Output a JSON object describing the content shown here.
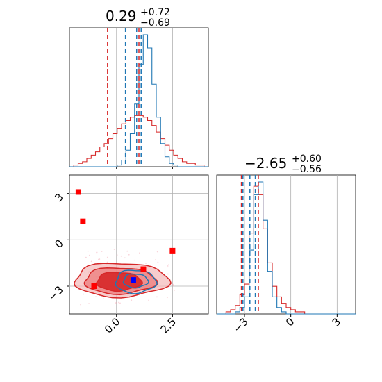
{
  "chart_data": {
    "type": "corner",
    "colors": {
      "series_a": "#d62728",
      "series_b": "#1f77b4",
      "marker_red": "#ff0000",
      "marker_blue": "#0000ff"
    },
    "grid": true,
    "titles": {
      "param1": {
        "median": "0.29",
        "plus": "+0.72",
        "minus": "−0.69"
      },
      "param2": {
        "median": "−2.65",
        "plus": "+0.60",
        "minus": "−0.56"
      }
    },
    "param1_axis": {
      "range": [
        -2.1,
        4.1
      ],
      "ticks": [
        0.0,
        2.5
      ],
      "tick_labels": [
        "0.0",
        "2.5"
      ]
    },
    "param2_axis": {
      "range": [
        -4.8,
        4.2
      ],
      "ticks": [
        -3,
        0,
        3
      ],
      "tick_labels": [
        "−3",
        "0",
        "3"
      ]
    },
    "param1_hist": {
      "series_a_quantiles": [
        -0.4,
        1.0
      ],
      "series_b_quantiles": [
        0.4,
        0.9,
        1.1
      ],
      "series_a_counts": [
        0,
        1,
        2,
        3,
        5,
        7,
        9,
        12,
        14,
        17,
        20,
        23,
        26,
        28,
        30,
        31,
        31,
        30,
        28,
        25,
        21,
        17,
        13,
        10,
        7,
        5,
        3,
        2,
        2,
        1,
        1,
        0
      ],
      "series_b_counts": [
        0,
        0,
        0,
        0,
        0,
        0,
        0,
        0,
        0,
        0,
        0,
        1,
        4,
        10,
        20,
        38,
        62,
        80,
        72,
        50,
        30,
        14,
        6,
        2,
        1,
        0,
        0,
        0,
        0,
        0,
        0,
        0
      ]
    },
    "param2_hist": {
      "series_a_quantiles": [
        -3.2,
        -2.1
      ],
      "series_b_quantiles": [
        -3.1,
        -2.65,
        -2.3
      ],
      "series_a_counts": [
        0,
        0,
        1,
        2,
        4,
        9,
        14,
        38,
        60,
        56,
        40,
        24,
        13,
        8,
        5,
        3,
        2,
        1,
        1,
        0,
        0,
        0,
        0,
        0,
        0,
        0,
        0,
        0,
        0,
        0
      ],
      "series_b_counts": [
        0,
        0,
        0,
        0,
        1,
        3,
        8,
        30,
        56,
        62,
        44,
        20,
        8,
        3,
        1,
        0,
        0,
        0,
        0,
        0,
        0,
        0,
        0,
        0,
        0,
        0,
        0,
        0,
        0,
        0
      ]
    },
    "scatter_markers_red": [
      {
        "x": -1.7,
        "y": 3.1
      },
      {
        "x": -1.5,
        "y": 1.2
      },
      {
        "x": -1.0,
        "y": -3.0
      },
      {
        "x": 1.2,
        "y": -1.9
      },
      {
        "x": 2.5,
        "y": -0.7
      }
    ],
    "scatter_markers_blue": [
      {
        "x": 0.75,
        "y": -2.6
      }
    ]
  }
}
